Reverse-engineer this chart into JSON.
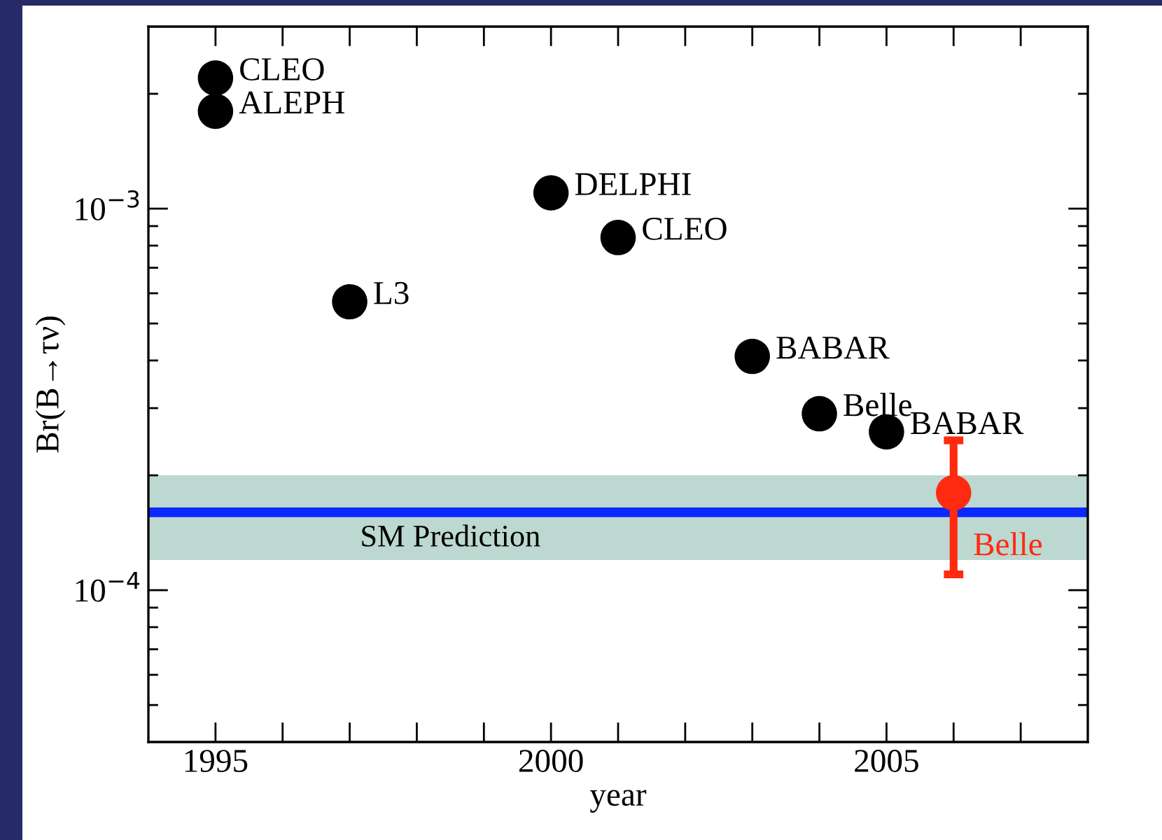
{
  "chart_data": {
    "type": "scatter",
    "xlabel": "year",
    "ylabel": "Br(B→τν)",
    "log": "y",
    "xlim": [
      1994,
      2008
    ],
    "xticks": [
      1995,
      {
        "value": 1996,
        "label": null
      },
      {
        "value": 1997,
        "label": null
      },
      {
        "value": 1998,
        "label": null
      },
      {
        "value": 1999,
        "label": null
      },
      2000,
      {
        "value": 2001,
        "label": null
      },
      {
        "value": 2002,
        "label": null
      },
      {
        "value": 2003,
        "label": null
      },
      {
        "value": 2004,
        "label": null
      },
      2005,
      {
        "value": 2006,
        "label": null
      },
      {
        "value": 2007,
        "label": null
      }
    ],
    "ylim": [
      4e-05,
      0.003
    ],
    "yticks": [
      {
        "value": 5e-05,
        "label": null
      },
      {
        "value": 6e-05,
        "label": null
      },
      {
        "value": 7e-05,
        "label": null
      },
      {
        "value": 8e-05,
        "label": null
      },
      {
        "value": 9e-05,
        "label": null
      },
      {
        "value": 0.0001,
        "label": "10$^{−4}$"
      },
      {
        "value": 0.0002,
        "label": null
      },
      {
        "value": 0.0003,
        "label": null
      },
      {
        "value": 0.0004,
        "label": null
      },
      {
        "value": 0.0005,
        "label": null
      },
      {
        "value": 0.0006,
        "label": null
      },
      {
        "value": 0.0007,
        "label": null
      },
      {
        "value": 0.0008,
        "label": null
      },
      {
        "value": 0.0009,
        "label": null
      },
      {
        "value": 0.001,
        "label": "10$^{−3}$"
      },
      {
        "value": 0.002,
        "label": null
      }
    ],
    "marker": "circle",
    "grid": false,
    "legend": false,
    "series": [
      {
        "color": "#000000",
        "x": [
          1995,
          1995,
          1997,
          2000,
          2001,
          2003,
          2004,
          2005
        ],
        "values": [
          0.0022,
          0.0018,
          0.00057,
          0.0011,
          0.00084,
          0.00041,
          0.00029,
          0.00026
        ]
      },
      {
        "name": "Belle",
        "color": "#ff2a10",
        "x": [
          2006
        ],
        "values": [
          0.00018
        ],
        "errors": [
          [
            0.00011,
            0.000247
          ]
        ]
      }
    ],
    "annotations": [
      {
        "text": "CLEO",
        "x": 1995,
        "y": 0.0022
      },
      {
        "text": "ALEPH",
        "x": 1995,
        "y": 0.0018
      },
      {
        "text": "L3",
        "x": 1997,
        "y": 0.00057
      },
      {
        "text": "DELPHI",
        "x": 2000,
        "y": 0.0011
      },
      {
        "text": "CLEO",
        "x": 2001,
        "y": 0.00084
      },
      {
        "text": "BABAR",
        "x": 2003,
        "y": 0.00041
      },
      {
        "text": "Belle",
        "x": 2004,
        "y": 0.00029
      },
      {
        "text": "BABAR",
        "x": 2005,
        "y": 0.00026
      }
    ],
    "ref_lines": [
      {
        "axis": "y",
        "value": 0.00016,
        "color": "#0a28ff"
      }
    ],
    "bands": [
      {
        "axis": "y",
        "from": 0.00012,
        "to": 0.0002,
        "label": "SM Prediction",
        "color": "#bcd8d0"
      }
    ]
  }
}
